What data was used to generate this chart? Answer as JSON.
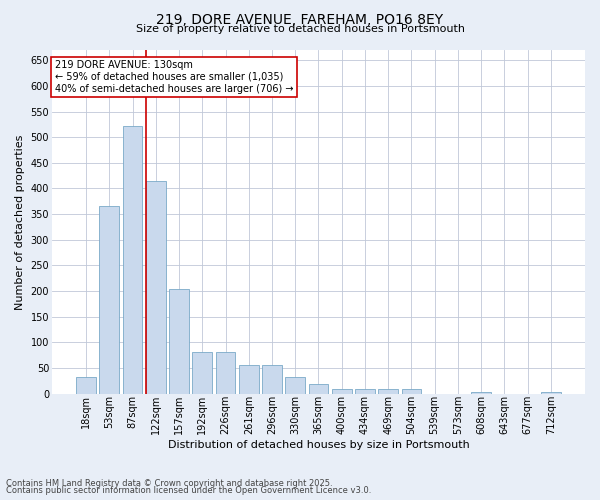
{
  "title_line1": "219, DORE AVENUE, FAREHAM, PO16 8EY",
  "title_line2": "Size of property relative to detached houses in Portsmouth",
  "xlabel": "Distribution of detached houses by size in Portsmouth",
  "ylabel": "Number of detached properties",
  "categories": [
    "18sqm",
    "53sqm",
    "87sqm",
    "122sqm",
    "157sqm",
    "192sqm",
    "226sqm",
    "261sqm",
    "296sqm",
    "330sqm",
    "365sqm",
    "400sqm",
    "434sqm",
    "469sqm",
    "504sqm",
    "539sqm",
    "573sqm",
    "608sqm",
    "643sqm",
    "677sqm",
    "712sqm"
  ],
  "values": [
    33,
    365,
    522,
    415,
    204,
    82,
    82,
    55,
    55,
    33,
    18,
    10,
    10,
    10,
    10,
    0,
    0,
    3,
    0,
    0,
    3
  ],
  "bar_color": "#c9d9ed",
  "bar_edge_color": "#7aaac8",
  "vline_x_index": 3,
  "vline_color": "#cc0000",
  "annotation_title": "219 DORE AVENUE: 130sqm",
  "annotation_line1": "← 59% of detached houses are smaller (1,035)",
  "annotation_line2": "40% of semi-detached houses are larger (706) →",
  "annotation_box_color": "#cc0000",
  "ylim": [
    0,
    670
  ],
  "yticks": [
    0,
    50,
    100,
    150,
    200,
    250,
    300,
    350,
    400,
    450,
    500,
    550,
    600,
    650
  ],
  "footer_line1": "Contains HM Land Registry data © Crown copyright and database right 2025.",
  "footer_line2": "Contains public sector information licensed under the Open Government Licence v3.0.",
  "bg_color": "#e8eef7",
  "plot_bg_color": "#ffffff",
  "title_fontsize": 10,
  "subtitle_fontsize": 8,
  "axis_label_fontsize": 8,
  "tick_fontsize": 7,
  "annotation_fontsize": 7,
  "footer_fontsize": 6
}
